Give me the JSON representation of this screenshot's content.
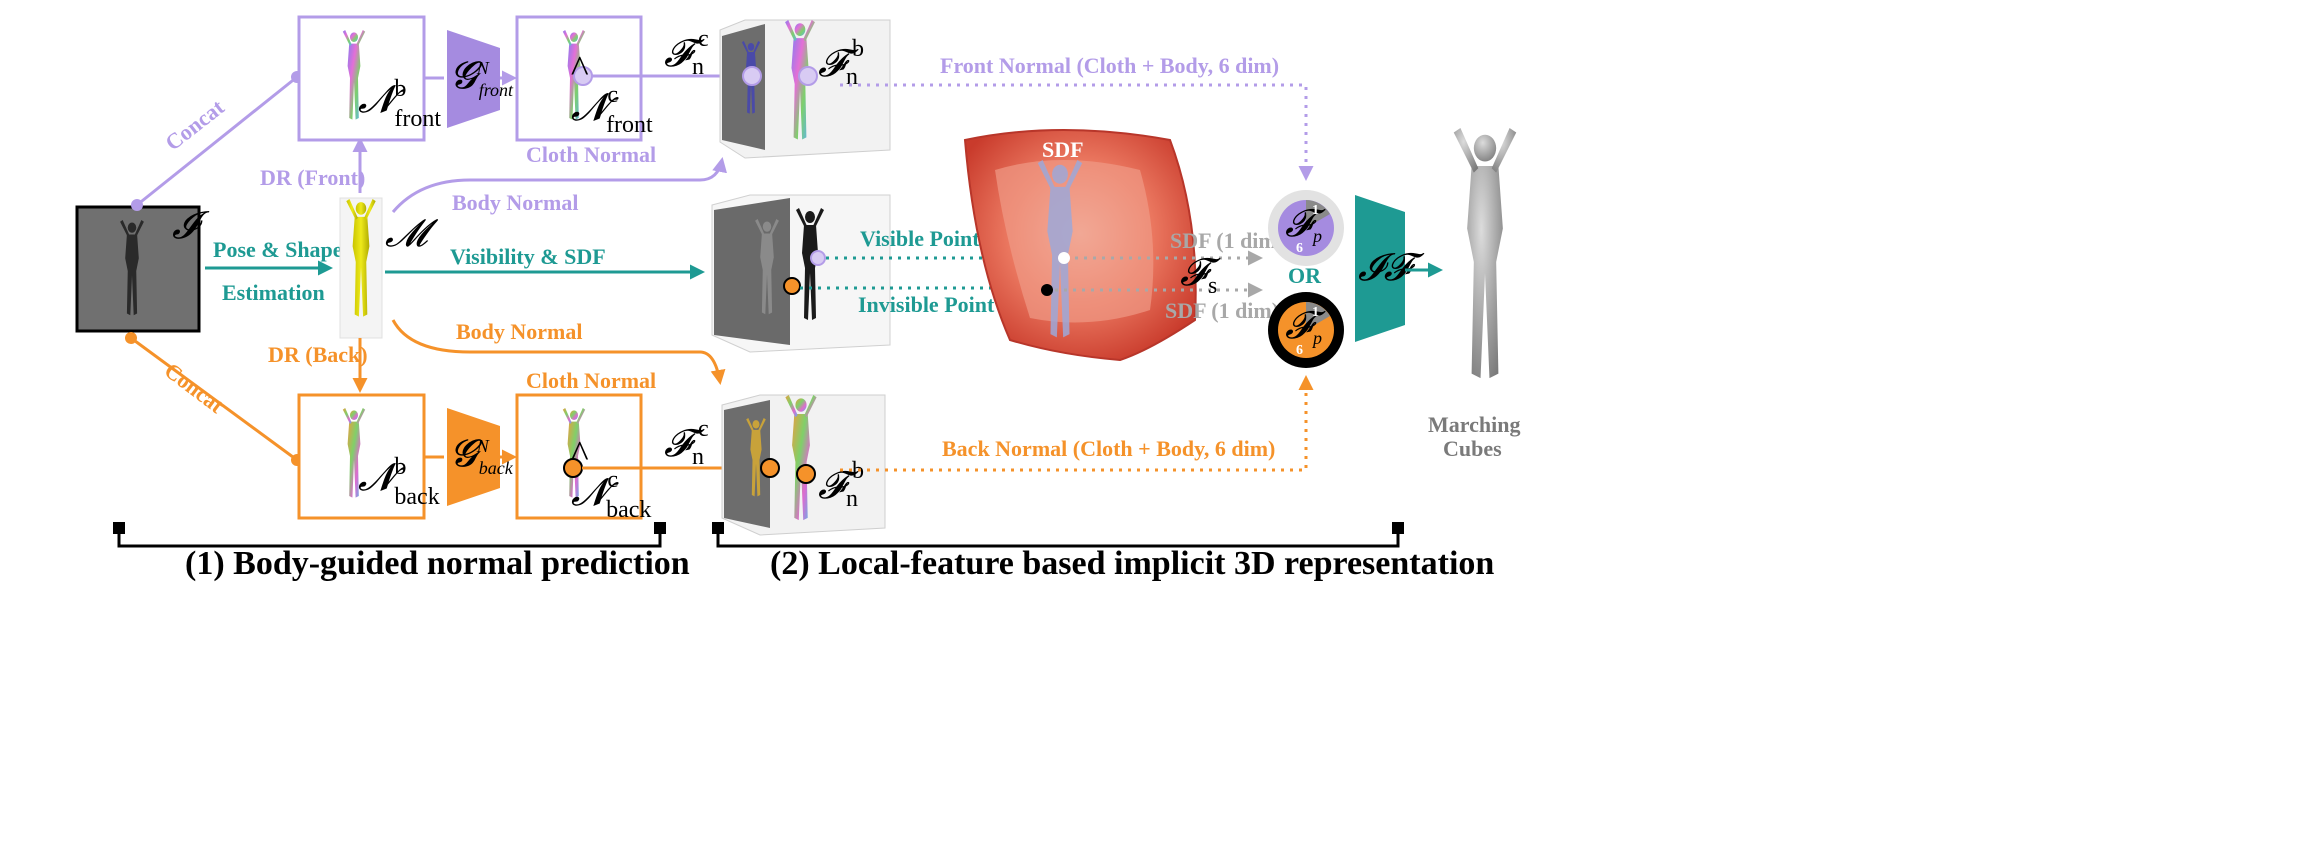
{
  "colors": {
    "purple": "#b39ce8",
    "purple_fill": "#a58be0",
    "orange": "#f5922a",
    "teal": "#1e9a93",
    "gray": "#a8a8a8",
    "black": "#000000",
    "sdf_red": "#e8604e"
  },
  "input": {
    "symbol": "𝓘"
  },
  "mesh": {
    "symbol": "𝓜"
  },
  "edges": {
    "concat_top": "Concat",
    "concat_bottom": "Concat",
    "dr_front": "DR (Front)",
    "dr_back": "DR (Back)",
    "pose_shape_1": "Pose & Shape",
    "pose_shape_2": "Estimation",
    "body_normal_top": "Body Normal",
    "body_normal_bottom": "Body Normal",
    "visibility_sdf": "Visibility & SDF",
    "visible_point": "Visible Point",
    "invisible_point": "Invisible Point",
    "sdf_1dim_top": "SDF (1 dim)",
    "sdf_1dim_bottom": "SDF (1 dim)",
    "front_normal": "Front Normal (Cloth + Body, 6 dim)",
    "back_normal": "Back Normal (Cloth + Body, 6 dim)"
  },
  "front": {
    "body_normal_main": "𝓝",
    "body_normal_sup": "b",
    "body_normal_sub": "front",
    "generator_main": "𝓖",
    "generator_sup": "N",
    "generator_sub": "front",
    "cloth_normal_main": "𝓝",
    "cloth_normal_hat": "^",
    "cloth_normal_sup": "c",
    "cloth_normal_sub": "front",
    "cloth_label": "Cloth Normal",
    "feat_c_main": "𝓕",
    "feat_c_sub": "n",
    "feat_c_sup": "c",
    "feat_b_main": "𝓕",
    "feat_b_sub": "n",
    "feat_b_sup": "b"
  },
  "back": {
    "body_normal_main": "𝓝",
    "body_normal_sup": "b",
    "body_normal_sub": "back",
    "generator_main": "𝓖",
    "generator_sup": "N",
    "generator_sub": "back",
    "cloth_normal_main": "𝓝",
    "cloth_normal_hat": "^",
    "cloth_normal_sup": "c",
    "cloth_normal_sub": "back",
    "cloth_label": "Cloth Normal",
    "feat_c_main": "𝓕",
    "feat_c_sub": "n",
    "feat_c_sup": "c",
    "feat_b_main": "𝓕",
    "feat_b_sub": "n",
    "feat_b_sup": "b"
  },
  "sdf": {
    "label": "SDF",
    "feat_main": "𝓕",
    "feat_sub": "s"
  },
  "feature_pies": {
    "top_main": "𝓕",
    "top_sub": "p",
    "top_n1": "1",
    "top_n6": "6",
    "or_label": "OR",
    "bottom_main": "𝓕",
    "bottom_sub": "p",
    "bottom_n1": "1",
    "bottom_n6": "6"
  },
  "implicit_function": {
    "symbol": "𝓘𝓕"
  },
  "output": {
    "line1": "Marching",
    "line2": "Cubes"
  },
  "sections": {
    "one": "(1) Body-guided normal prediction",
    "two": "(2) Local-feature based implicit 3D representation"
  }
}
